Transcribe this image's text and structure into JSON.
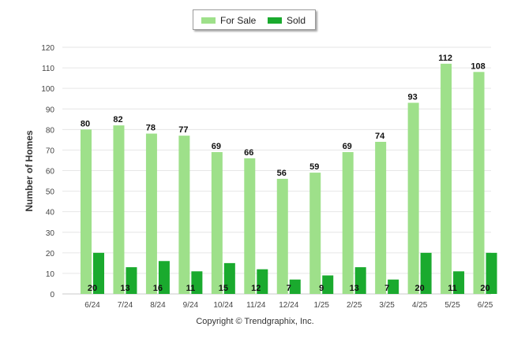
{
  "chart_data": {
    "type": "bar",
    "title": "",
    "xlabel": "",
    "ylabel": "Number of Homes",
    "ylim": [
      0,
      120
    ],
    "yticks": [
      0,
      10,
      20,
      30,
      40,
      50,
      60,
      70,
      80,
      90,
      100,
      110,
      120
    ],
    "grid": true,
    "legend_position": "top-center",
    "categories": [
      "6/24",
      "7/24",
      "8/24",
      "9/24",
      "10/24",
      "11/24",
      "12/24",
      "1/25",
      "2/25",
      "3/25",
      "4/25",
      "5/25",
      "6/25"
    ],
    "series": [
      {
        "name": "For Sale",
        "color": "#9ee08a",
        "values": [
          80,
          82,
          78,
          77,
          69,
          66,
          56,
          59,
          69,
          74,
          93,
          112,
          108
        ]
      },
      {
        "name": "Sold",
        "color": "#1aaa2e",
        "values": [
          20,
          13,
          16,
          11,
          15,
          12,
          7,
          9,
          13,
          7,
          20,
          11,
          20
        ]
      }
    ]
  },
  "footer": {
    "copyright": "Copyright © Trendgraphix, Inc."
  }
}
